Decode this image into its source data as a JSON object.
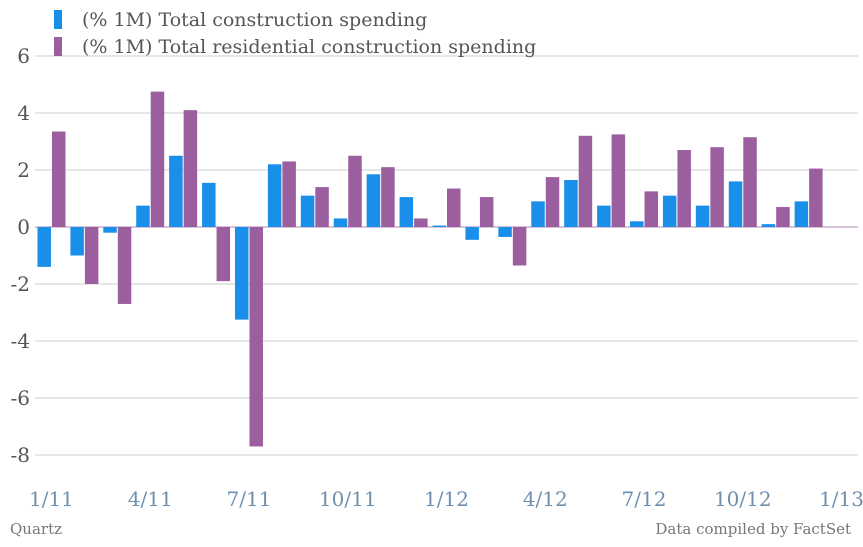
{
  "chart_data": {
    "type": "bar",
    "categories": [
      "1/11",
      "2/11",
      "3/11",
      "4/11",
      "5/11",
      "6/11",
      "7/11",
      "8/11",
      "9/11",
      "10/11",
      "11/11",
      "12/11",
      "1/12",
      "2/12",
      "3/12",
      "4/12",
      "5/12",
      "6/12",
      "7/12",
      "8/12",
      "9/12",
      "10/12",
      "11/12",
      "12/12",
      "1/13"
    ],
    "x_tick_labels": [
      {
        "index": 0,
        "label": "1/11"
      },
      {
        "index": 3,
        "label": "4/11"
      },
      {
        "index": 6,
        "label": "7/11"
      },
      {
        "index": 9,
        "label": "10/11"
      },
      {
        "index": 12,
        "label": "1/12"
      },
      {
        "index": 15,
        "label": "4/12"
      },
      {
        "index": 18,
        "label": "7/12"
      },
      {
        "index": 21,
        "label": "10/12"
      },
      {
        "index": 24,
        "label": "1/13"
      }
    ],
    "series": [
      {
        "name": "(% 1M) Total construction spending",
        "color": "#1a8fea",
        "values": [
          -1.4,
          -1.0,
          -0.2,
          0.75,
          2.5,
          1.55,
          -3.25,
          2.2,
          1.1,
          0.3,
          1.85,
          1.05,
          0.05,
          -0.45,
          -0.35,
          0.9,
          1.65,
          0.75,
          0.2,
          1.1,
          0.75,
          1.6,
          0.1,
          0.9,
          0
        ]
      },
      {
        "name": "(% 1M) Total residential construction spending",
        "color": "#9b5fa0",
        "values": [
          3.35,
          -2.0,
          -2.7,
          4.75,
          4.1,
          -1.9,
          -7.7,
          2.3,
          1.4,
          2.5,
          2.1,
          0.3,
          1.35,
          1.05,
          -1.35,
          1.75,
          3.2,
          3.25,
          1.25,
          2.7,
          2.8,
          3.15,
          0.7,
          2.05,
          0
        ]
      }
    ],
    "yticks": [
      6,
      4,
      2,
      0,
      -2,
      -4,
      -6,
      -8
    ],
    "ylim": [
      -8,
      6
    ],
    "grid": true,
    "legend_position": "top-left"
  },
  "footer": {
    "source_left": "Quartz",
    "source_right": "Data compiled by FactSet"
  }
}
